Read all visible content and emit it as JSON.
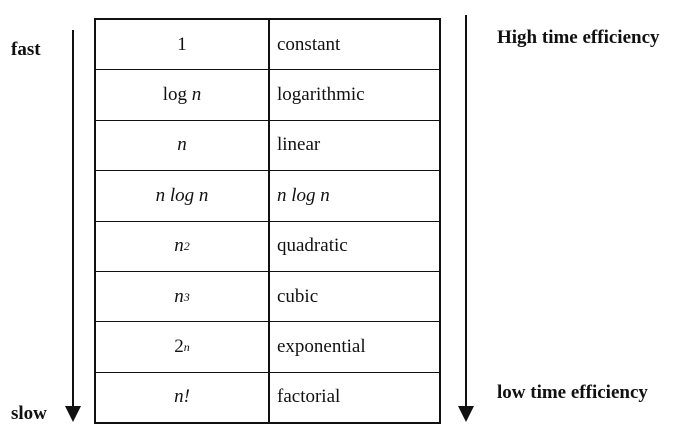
{
  "labels": {
    "fast": "fast",
    "slow": "slow",
    "high": "High time efficiency",
    "low": "low time efficiency"
  },
  "rows": [
    {
      "func_base": "1",
      "func_var": "",
      "func_sup": "",
      "name": "constant"
    },
    {
      "func_base": "log ",
      "func_var": "n",
      "func_sup": "",
      "name": "logarithmic"
    },
    {
      "func_base": "",
      "func_var": "n",
      "func_sup": "",
      "name": "linear"
    },
    {
      "func_base": "",
      "func_var": "n log n",
      "func_sup": "",
      "name": "n log n"
    },
    {
      "func_base": "",
      "func_var": "n",
      "func_sup": "2",
      "name": "quadratic"
    },
    {
      "func_base": "",
      "func_var": "n",
      "func_sup": "3",
      "name": "cubic"
    },
    {
      "func_base": "2",
      "func_var": "",
      "func_sup": "n",
      "name": "exponential"
    },
    {
      "func_base": "",
      "func_var": "n!",
      "func_sup": "",
      "name": "factorial"
    }
  ]
}
